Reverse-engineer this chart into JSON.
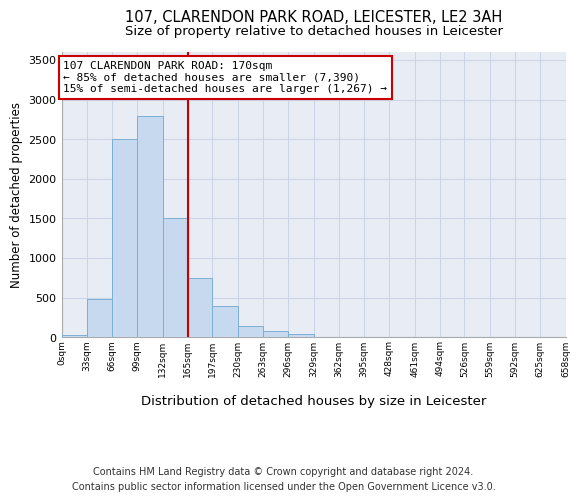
{
  "title": "107, CLARENDON PARK ROAD, LEICESTER, LE2 3AH",
  "subtitle": "Size of property relative to detached houses in Leicester",
  "xlabel": "Distribution of detached houses by size in Leicester",
  "ylabel": "Number of detached properties",
  "bin_edges": [
    0,
    33,
    66,
    99,
    132,
    165,
    197,
    230,
    263,
    296,
    329,
    362,
    395,
    428,
    461,
    494,
    526,
    559,
    592,
    625,
    658
  ],
  "bar_heights": [
    30,
    480,
    2500,
    2800,
    1500,
    750,
    390,
    145,
    75,
    45,
    5,
    0,
    0,
    0,
    0,
    0,
    0,
    0,
    0,
    0
  ],
  "bar_color": "#c6d9ee",
  "bar_edge_color": "#7bafd4",
  "bar_linewidth": 0.7,
  "vline_x": 165,
  "vline_color": "#cc0000",
  "vline_linewidth": 1.5,
  "annotation_line1": "107 CLARENDON PARK ROAD: 170sqm",
  "annotation_line2": "← 85% of detached houses are smaller (7,390)",
  "annotation_line3": "15% of semi-detached houses are larger (1,267) →",
  "annotation_box_edge_color": "#cc0000",
  "annotation_box_facecolor": "white",
  "annotation_fontsize": 8.0,
  "ylim": [
    0,
    3600
  ],
  "yticks": [
    0,
    500,
    1000,
    1500,
    2000,
    2500,
    3000,
    3500
  ],
  "tick_labels": [
    "0sqm",
    "33sqm",
    "66sqm",
    "99sqm",
    "132sqm",
    "165sqm",
    "197sqm",
    "230sqm",
    "263sqm",
    "296sqm",
    "329sqm",
    "362sqm",
    "395sqm",
    "428sqm",
    "461sqm",
    "494sqm",
    "526sqm",
    "559sqm",
    "592sqm",
    "625sqm",
    "658sqm"
  ],
  "grid_color": "#ccd5e8",
  "background_color": "#e8edf5",
  "footer_text": "Contains HM Land Registry data © Crown copyright and database right 2024.\nContains public sector information licensed under the Open Government Licence v3.0.",
  "title_fontsize": 10.5,
  "subtitle_fontsize": 9.5,
  "xlabel_fontsize": 9.5,
  "ylabel_fontsize": 8.5,
  "footer_fontsize": 7.0
}
